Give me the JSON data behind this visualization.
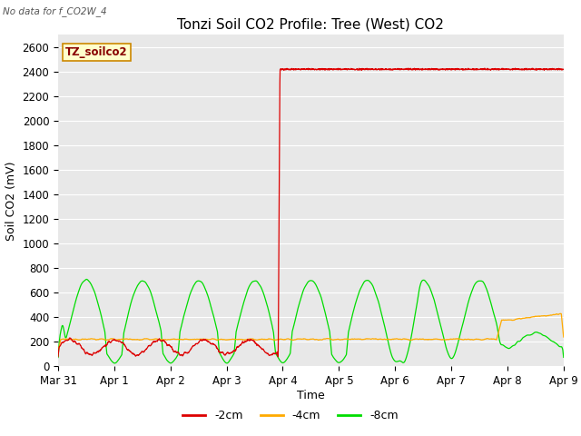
{
  "title": "Tonzi Soil CO2 Profile: Tree (West) CO2",
  "top_left_text": "No data for f_CO2W_4",
  "watermark_text": "TZ_soilco2",
  "ylabel": "Soil CO2 (mV)",
  "xlabel": "Time",
  "ylim": [
    0,
    2700
  ],
  "yticks": [
    0,
    200,
    400,
    600,
    800,
    1000,
    1200,
    1400,
    1600,
    1800,
    2000,
    2200,
    2400,
    2600
  ],
  "xtick_labels": [
    "Mar 31",
    "Apr 1",
    "Apr 2",
    "Apr 3",
    "Apr 4",
    "Apr 5",
    "Apr 6",
    "Apr 7",
    "Apr 8",
    "Apr 9"
  ],
  "colors": {
    "neg2cm": "#dd0000",
    "neg4cm": "#ffaa00",
    "neg8cm": "#00dd00",
    "background": "#e8e8e8",
    "watermark_bg": "#ffffcc",
    "watermark_border": "#cc8800",
    "grid": "#ffffff"
  },
  "legend_labels": [
    "-2cm",
    "-4cm",
    "-8cm"
  ],
  "title_fontsize": 11,
  "axes_fontsize": 9,
  "tick_fontsize": 8.5
}
